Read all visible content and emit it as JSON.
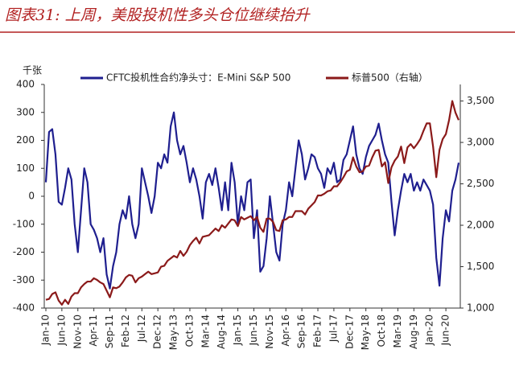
{
  "chart_data": {
    "type": "line",
    "title": "图表31: 上周，美股投机性多头仓位继续抬升",
    "y_unit_label": "千张",
    "categories": [
      "Jan-10",
      null,
      null,
      null,
      null,
      "Jun-10",
      null,
      null,
      null,
      null,
      "Nov-10",
      null,
      null,
      null,
      null,
      "Apr-11",
      null,
      null,
      null,
      null,
      "Sep-11",
      null,
      null,
      null,
      null,
      "Feb-12",
      null,
      null,
      null,
      null,
      "Jul-12",
      null,
      null,
      null,
      null,
      "Dec-12",
      null,
      null,
      null,
      null,
      "May-13",
      null,
      null,
      null,
      null,
      "Oct-13",
      null,
      null,
      null,
      null,
      "Mar-14",
      null,
      null,
      null,
      null,
      "Aug-14",
      null,
      null,
      null,
      null,
      "Jan-15",
      null,
      null,
      null,
      null,
      "Jun-15",
      null,
      null,
      null,
      null,
      "Nov-15",
      null,
      null,
      null,
      null,
      "Apr-16",
      null,
      null,
      null,
      null,
      "Sep-16",
      null,
      null,
      null,
      null,
      "Feb-17",
      null,
      null,
      null,
      null,
      "Jul-17",
      null,
      null,
      null,
      null,
      "Dec-17",
      null,
      null,
      null,
      null,
      "May-18",
      null,
      null,
      null,
      null,
      "Oct-18",
      null,
      null,
      null,
      null,
      "Mar-19",
      null,
      null,
      null,
      null,
      "Aug-19",
      null,
      null,
      null,
      null,
      "Jan-20",
      null,
      null,
      null,
      null,
      "Jun-20",
      null,
      null,
      null,
      null
    ],
    "series": [
      {
        "name": "CFTC投机性合约净头寸：E-Mini S&P 500",
        "color": "#1f1f8f",
        "axis": "y",
        "values": [
          50,
          230,
          240,
          150,
          -20,
          -30,
          30,
          100,
          60,
          -100,
          -200,
          -50,
          100,
          50,
          -100,
          -120,
          -150,
          -200,
          -150,
          -280,
          -330,
          -250,
          -200,
          -100,
          -50,
          -80,
          0,
          -100,
          -150,
          -100,
          100,
          50,
          0,
          -60,
          0,
          120,
          100,
          150,
          120,
          250,
          300,
          200,
          150,
          180,
          120,
          50,
          100,
          60,
          0,
          -80,
          50,
          80,
          40,
          100,
          30,
          -50,
          50,
          -50,
          120,
          50,
          -100,
          0,
          -50,
          50,
          60,
          -150,
          -50,
          -270,
          -250,
          -150,
          0,
          -100,
          -200,
          -230,
          -100,
          -50,
          50,
          0,
          100,
          200,
          150,
          60,
          100,
          150,
          140,
          100,
          80,
          30,
          100,
          80,
          120,
          50,
          60,
          130,
          150,
          200,
          250,
          150,
          100,
          80,
          140,
          180,
          200,
          220,
          260,
          200,
          150,
          120,
          -20,
          -140,
          -50,
          20,
          80,
          50,
          80,
          20,
          50,
          20,
          60,
          40,
          20,
          -30,
          -220,
          -320,
          -150,
          -50,
          -90,
          20,
          60,
          120
        ]
      },
      {
        "name": "标普500（右轴）",
        "color": "#8b1a1a",
        "axis": "y2",
        "values": [
          1100,
          1110,
          1170,
          1190,
          1090,
          1040,
          1100,
          1050,
          1140,
          1180,
          1180,
          1250,
          1290,
          1320,
          1320,
          1360,
          1340,
          1310,
          1290,
          1210,
          1130,
          1250,
          1240,
          1260,
          1310,
          1370,
          1400,
          1390,
          1310,
          1360,
          1380,
          1410,
          1440,
          1410,
          1420,
          1430,
          1500,
          1510,
          1570,
          1600,
          1630,
          1610,
          1690,
          1630,
          1680,
          1760,
          1810,
          1850,
          1780,
          1860,
          1870,
          1880,
          1920,
          1960,
          1930,
          2000,
          1970,
          2020,
          2070,
          2060,
          1990,
          2100,
          2070,
          2090,
          2110,
          2060,
          2100,
          1970,
          1920,
          2080,
          2080,
          2040,
          1940,
          1930,
          2060,
          2070,
          2100,
          2100,
          2170,
          2170,
          2170,
          2130,
          2200,
          2240,
          2280,
          2360,
          2360,
          2380,
          2410,
          2420,
          2470,
          2470,
          2520,
          2580,
          2650,
          2670,
          2820,
          2710,
          2640,
          2650,
          2710,
          2720,
          2820,
          2900,
          2910,
          2710,
          2760,
          2510,
          2700,
          2780,
          2830,
          2950,
          2750,
          2940,
          2980,
          2930,
          2980,
          3040,
          3140,
          3230,
          3230,
          2950,
          2580,
          2910,
          3040,
          3100,
          3270,
          3500,
          3360,
          3270
        ]
      }
    ],
    "ylim": [
      -400,
      400
    ],
    "yticks": [
      -400,
      -300,
      -200,
      -100,
      0,
      100,
      200,
      300,
      400
    ],
    "y2lim": [
      1000,
      3700
    ],
    "y2ticks": [
      {
        "value": 1000,
        "label": "1,000"
      },
      {
        "value": 1500,
        "label": "1,500"
      },
      {
        "value": 2000,
        "label": "2,000"
      },
      {
        "value": 2500,
        "label": "2,500"
      },
      {
        "value": 3000,
        "label": "3,000"
      },
      {
        "value": 3500,
        "label": "3,500"
      }
    ],
    "negative_tick_color": "#c00000",
    "grid": false
  }
}
